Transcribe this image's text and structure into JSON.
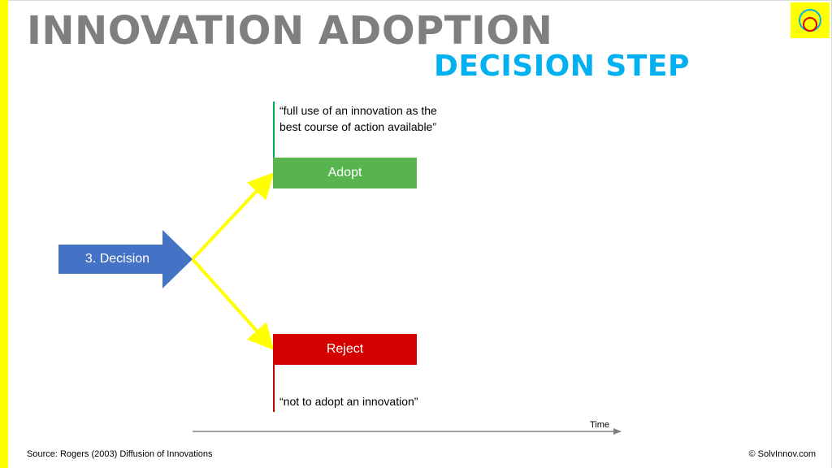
{
  "header": {
    "title": "INNOVATION ADOPTION",
    "subtitle": "DECISION STEP"
  },
  "diagram": {
    "decision": {
      "label": "3. Decision",
      "color": "#4472c4"
    },
    "adopt": {
      "label": "Adopt",
      "color": "#57b44f",
      "quote_line1": "“full use of an innovation as the",
      "quote_line2": "best course of action available”"
    },
    "reject": {
      "label": "Reject",
      "color": "#d40000",
      "quote": "“not to adopt an innovation”"
    },
    "branch_color": "#ffff00",
    "time_axis": {
      "label": "Time"
    }
  },
  "footer": {
    "source": "Source: Rogers (2003) Diffusion of Innovations",
    "copyright": "© SolvInnov.com"
  },
  "logo": {
    "icon": "circles-logo-icon",
    "background": "#ffff00"
  }
}
